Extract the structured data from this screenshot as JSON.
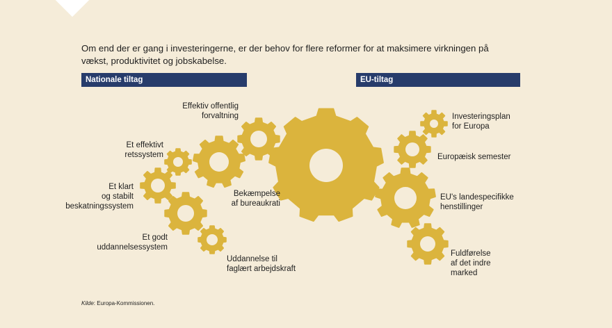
{
  "intro_text": "Om end der er gang i investeringerne, er der behov for flere reformer for at maksimere virkningen på vækst, produktivitet og jobskabelse.",
  "sections": {
    "national": "Nationale tiltag",
    "eu": "EU-tiltag"
  },
  "gear_color": "#dbb43d",
  "background_color": "#f5ecd9",
  "header_color": "#273c6b",
  "national_items": [
    "Effektiv offentlig\nforvaltning",
    "Et effektivt\nretssystem",
    "Et klart\nog stabilt\nbeskatningssystem",
    "Bekæmpelse\naf bureaukrati",
    "Et godt\nuddannelsessystem",
    "Uddannelse til\nfaglært arbejdskraft"
  ],
  "eu_items": [
    "Investeringsplan\nfor Europa",
    "Europæisk semester",
    "EU's landespecifikke\nhenstillinger",
    "Fuldførelse\naf det indre\nmarked"
  ],
  "source": {
    "label": "Kilde",
    "text": ": Europa-Kommissionen."
  }
}
